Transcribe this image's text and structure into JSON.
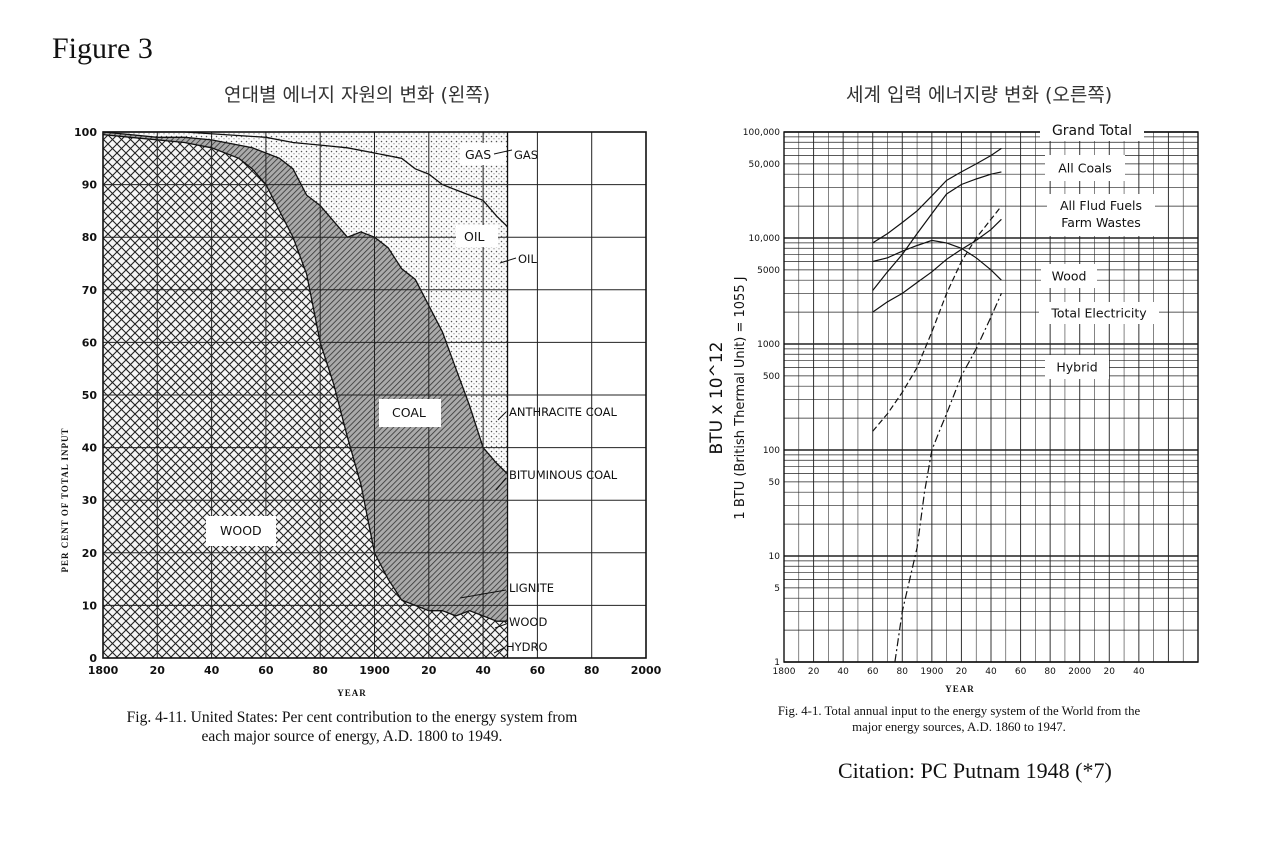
{
  "figure_label": "Figure 3",
  "citation": "Citation: PC Putnam 1948 (*7)",
  "chart_data": [
    {
      "type": "area",
      "title": "연대별 에너지 자원의 변화 (왼쪽)",
      "caption_line1": "Fig. 4-11. United States: Per cent contribution to the energy system from",
      "caption_line2": "each major source of energy, A.D. 1800 to 1949.",
      "xlabel": "YEAR",
      "ylabel": "PER CENT OF TOTAL INPUT",
      "xlim": [
        1800,
        2000
      ],
      "ylim": [
        0,
        100
      ],
      "x_tick_labels": [
        "1800",
        "20",
        "40",
        "60",
        "80",
        "1900",
        "20",
        "40",
        "60",
        "80",
        "2000"
      ],
      "y_tick_labels": [
        "0",
        "10",
        "20",
        "30",
        "40",
        "50",
        "60",
        "70",
        "80",
        "90",
        "100"
      ],
      "x_ticks": [
        1800,
        1820,
        1840,
        1860,
        1880,
        1900,
        1920,
        1940,
        1960,
        1980,
        2000
      ],
      "y_ticks": [
        0,
        10,
        20,
        30,
        40,
        50,
        60,
        70,
        80,
        90,
        100
      ],
      "region_labels": {
        "gas": "GAS",
        "oil": "OIL",
        "coal": "COAL",
        "wood": "WOOD"
      },
      "side_labels": {
        "gas": "GAS",
        "oil": "OIL",
        "anthracite": "ANTHRACITE COAL",
        "bituminous": "BITUMINOUS COAL",
        "lignite": "LIGNITE",
        "wood": "WOOD",
        "hydro": "HYDRO"
      },
      "boundaries": {
        "wood_top": {
          "x": [
            1800,
            1810,
            1820,
            1830,
            1840,
            1850,
            1855,
            1860,
            1865,
            1870,
            1875,
            1880,
            1885,
            1890,
            1895,
            1900,
            1905,
            1910,
            1915,
            1920,
            1925,
            1930,
            1935,
            1940,
            1945,
            1949
          ],
          "y": [
            99.5,
            99,
            98.5,
            98,
            97,
            95,
            93,
            90,
            85,
            80,
            73,
            60,
            52,
            42,
            33,
            20,
            15,
            11,
            10,
            9,
            9,
            8,
            9,
            8,
            7,
            7
          ]
        },
        "coal_top": {
          "x": [
            1800,
            1810,
            1820,
            1830,
            1840,
            1850,
            1855,
            1860,
            1865,
            1870,
            1875,
            1880,
            1885,
            1890,
            1895,
            1900,
            1905,
            1910,
            1915,
            1920,
            1925,
            1930,
            1935,
            1940,
            1945,
            1949
          ],
          "y": [
            100,
            99.5,
            99,
            99,
            98.5,
            97.5,
            97,
            96,
            95,
            93,
            88,
            86,
            83,
            80,
            81,
            80,
            78,
            74,
            72,
            67,
            62,
            55,
            48,
            40,
            37,
            35
          ]
        },
        "oil_top": {
          "x": [
            1800,
            1830,
            1860,
            1870,
            1880,
            1890,
            1900,
            1905,
            1910,
            1915,
            1920,
            1925,
            1930,
            1935,
            1940,
            1945,
            1949
          ],
          "y": [
            100,
            100,
            99,
            98,
            97.5,
            97,
            96,
            95.5,
            95,
            93,
            92,
            90,
            89,
            88,
            87,
            84,
            82
          ]
        }
      }
    },
    {
      "type": "line",
      "title": "세계 입력 에너지량 변화 (오른쪽)",
      "caption_line1": "Fig. 4-1. Total annual input to the energy system of the World from the",
      "caption_line2": "major energy sources, A.D. 1860 to 1947.",
      "xlabel": "YEAR",
      "ylabel": "BTU x 10^12",
      "ylabel2": "1 BTU (British Thermal Unit) = 1055 J",
      "yscale": "log",
      "xlim": [
        1800,
        2080
      ],
      "ylim": [
        1,
        100000
      ],
      "x_tick_labels": [
        "1800",
        "20",
        "40",
        "60",
        "80",
        "1900",
        "20",
        "40",
        "60",
        "80",
        "2000",
        "20",
        "40"
      ],
      "x_ticks": [
        1800,
        1820,
        1840,
        1860,
        1880,
        1900,
        1920,
        1940,
        1960,
        1980,
        2000,
        2020,
        2040
      ],
      "y_tick_labels": [
        "1",
        "5",
        "10",
        "50",
        "100",
        "500",
        "1000",
        "5000",
        "10,000",
        "50,000",
        "100,000"
      ],
      "y_ticks": [
        1,
        5,
        10,
        50,
        100,
        500,
        1000,
        5000,
        10000,
        50000,
        100000
      ],
      "series": [
        {
          "name": "Grand Total",
          "x": [
            1860,
            1870,
            1880,
            1890,
            1900,
            1910,
            1920,
            1930,
            1940,
            1947
          ],
          "y": [
            9000,
            11000,
            14000,
            18000,
            25000,
            35000,
            42000,
            50000,
            60000,
            70000
          ]
        },
        {
          "name": "All Coals",
          "x": [
            1860,
            1870,
            1880,
            1890,
            1900,
            1910,
            1920,
            1930,
            1940,
            1947
          ],
          "y": [
            3200,
            4800,
            7000,
            11000,
            17000,
            26000,
            32000,
            36000,
            40000,
            42000
          ]
        },
        {
          "name": "All Flud Fuels Farm Wastes",
          "x": [
            1860,
            1870,
            1880,
            1890,
            1900,
            1910,
            1920,
            1930,
            1940,
            1947
          ],
          "y": [
            2000,
            2500,
            3000,
            3800,
            4800,
            6300,
            7800,
            9500,
            12000,
            15000
          ]
        },
        {
          "name": "Wood",
          "x": [
            1860,
            1870,
            1880,
            1890,
            1900,
            1910,
            1920,
            1930,
            1940,
            1947
          ],
          "y": [
            6000,
            6500,
            7500,
            8500,
            9500,
            9000,
            8000,
            6500,
            5000,
            4000
          ]
        },
        {
          "name": "Total Electricity",
          "x": [
            1860,
            1870,
            1880,
            1890,
            1900,
            1910,
            1920,
            1930,
            1940,
            1947
          ],
          "y": [
            150,
            220,
            350,
            600,
            1300,
            3000,
            6000,
            10000,
            15000,
            20000
          ]
        },
        {
          "name": "Hybrid",
          "x": [
            1875,
            1880,
            1885,
            1890,
            1895,
            1900,
            1905,
            1910,
            1920,
            1930,
            1940,
            1947
          ],
          "y": [
            1,
            3,
            6,
            12,
            40,
            100,
            150,
            220,
            500,
            900,
            1800,
            3000
          ]
        }
      ]
    }
  ]
}
